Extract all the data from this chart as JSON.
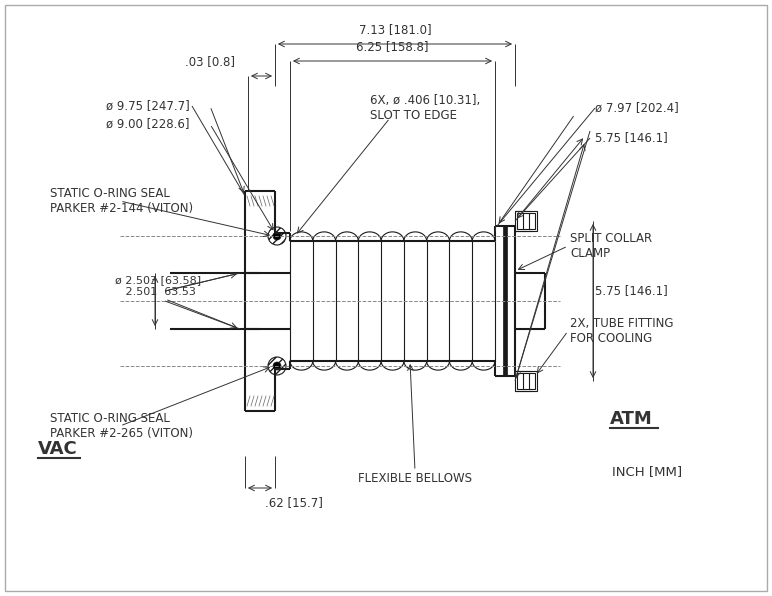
{
  "bg_color": "#f0f0f0",
  "line_color": "#1a1a1a",
  "dim_color": "#333333",
  "hatch_color": "#555555",
  "annotations": {
    "dim_7_13": "7.13 [181.0]",
    "dim_6_25": "6.25 [158.8]",
    "dim_0_03": ".03 [0.8]",
    "dim_phi_9_75": "ø 9.75 [247.7]",
    "dim_phi_9_00": "ø 9.00 [228.6]",
    "dim_6x_slot": "6X, ø .406 [10.31],\nSLOT TO EDGE",
    "dim_phi_7_97": "ø 7.97 [202.4]",
    "dim_5_75": "5.75 [146.1]",
    "dim_2_503": "ø 2.503 [63.58]\n   2.501  63.53",
    "label_split_collar": "SPLIT COLLAR\nCLAMP",
    "label_tube_fitting": "2X, TUBE FITTING\nFOR COOLING",
    "label_static_144": "STATIC O-RING SEAL\nPARKER #2-144 (VITON)",
    "label_static_265": "STATIC O-RING SEAL\nPARKER #2-265 (VITON)",
    "label_flexible": "FLEXIBLE BELLOWS",
    "label_vac": "VAC",
    "label_atm": "ATM",
    "label_inch_mm": "INCH [MM]",
    "dim_0_62": ".62 [15.7]"
  }
}
